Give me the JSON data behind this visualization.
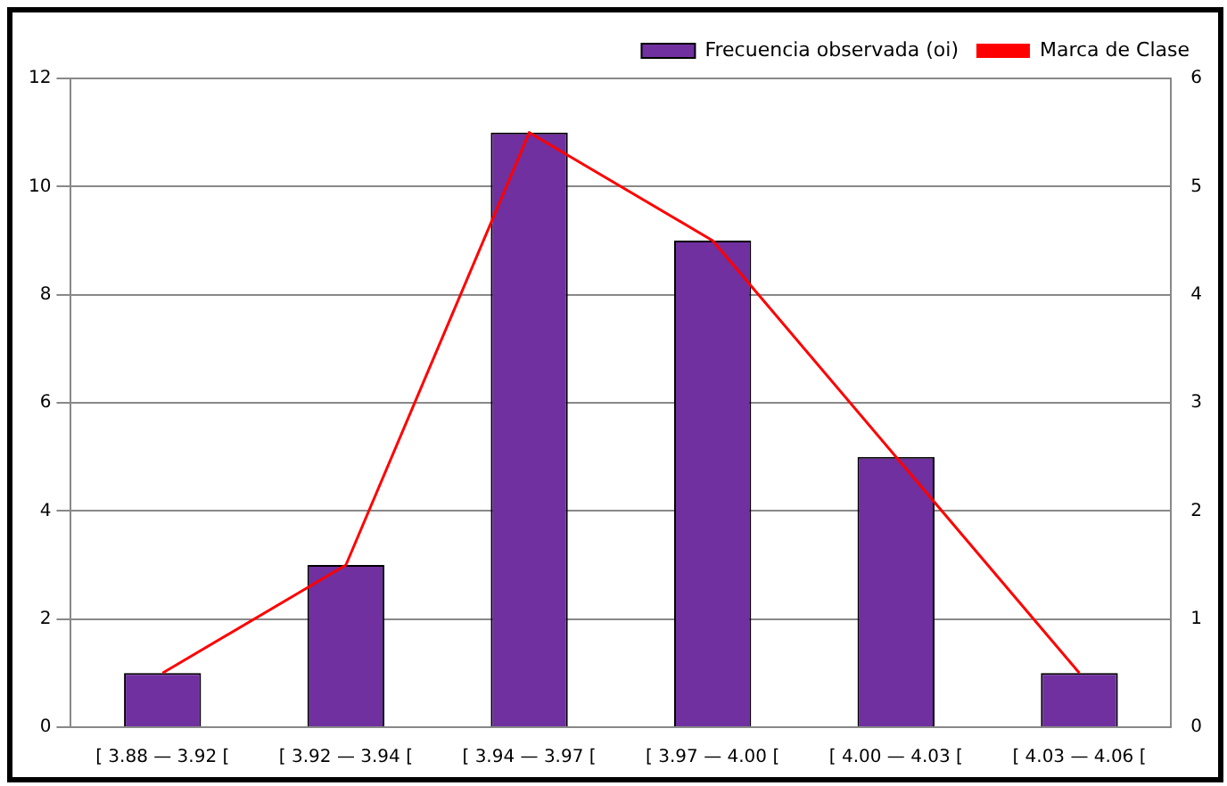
{
  "chart_data": {
    "type": "bar",
    "categories": [
      "[ 3.88 — 3.92 [",
      "[ 3.92 — 3.94 [",
      "[ 3.94 — 3.97 [",
      "[ 3.97 — 4.00 [",
      "[ 4.00 — 4.03 [",
      "[ 4.03 — 4.06 ["
    ],
    "series": [
      {
        "name": "Frecuencia observada (oi)",
        "color": "#7030a0",
        "values": [
          1,
          3,
          11,
          9,
          5,
          1
        ]
      },
      {
        "name": "Marca de Clase",
        "type": "line",
        "axis": "y2",
        "color": "#ff0000",
        "values": [
          0.5,
          1.5,
          5.5,
          4.5,
          2.5,
          0.5
        ]
      }
    ],
    "ylim": [
      0,
      12
    ],
    "yticks": [
      0,
      2,
      4,
      6,
      8,
      10,
      12
    ],
    "y2lim": [
      0,
      6
    ],
    "y2ticks": [
      0,
      1,
      2,
      3,
      4,
      5,
      6
    ],
    "grid": "y",
    "legend": "top right",
    "marker": "none"
  }
}
